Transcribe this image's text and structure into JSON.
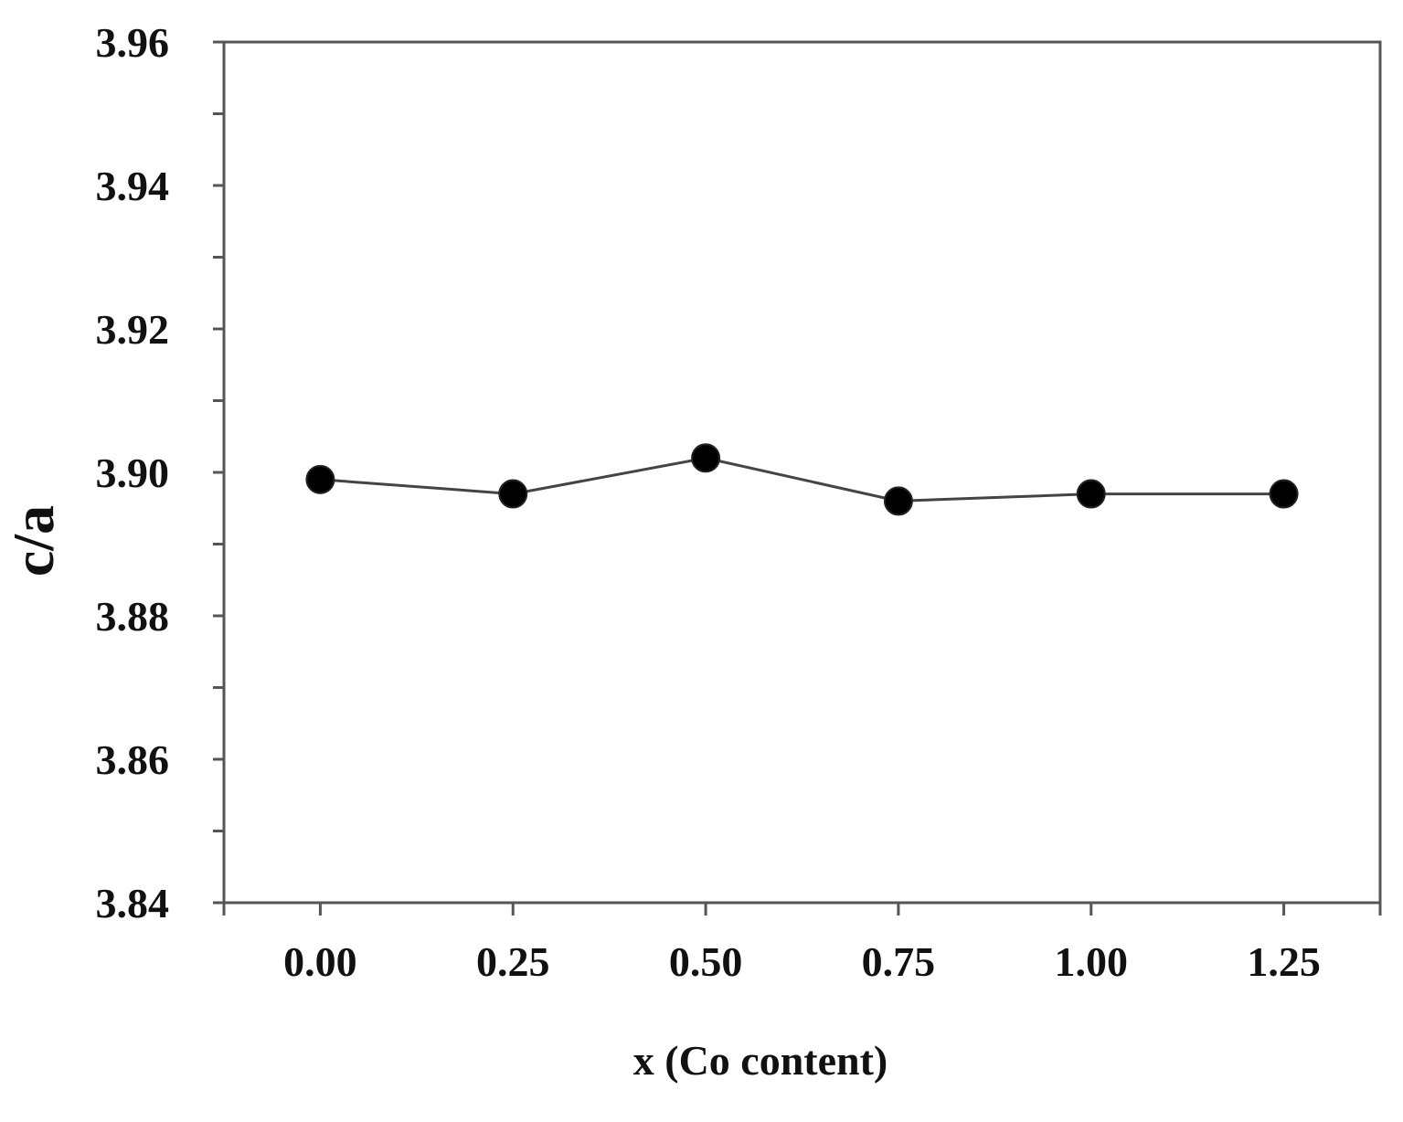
{
  "chart_data": {
    "type": "line",
    "title": "",
    "xlabel": "x (Co content)",
    "ylabel": "c/a",
    "x_ticks": [
      "0.00",
      "0.25",
      "0.50",
      "0.75",
      "1.00",
      "1.25"
    ],
    "y_ticks": [
      "3.84",
      "3.86",
      "3.88",
      "3.90",
      "3.92",
      "3.94",
      "3.96"
    ],
    "xlim": [
      -0.125,
      1.375
    ],
    "ylim": [
      3.84,
      3.96
    ],
    "grid": false,
    "series": [
      {
        "x": [
          0.0,
          0.25,
          0.5,
          0.75,
          1.0,
          1.25
        ],
        "y": [
          3.899,
          3.897,
          3.902,
          3.896,
          3.897,
          3.897
        ],
        "line_color": "#444444",
        "marker": "circle",
        "marker_color": "#000000"
      }
    ]
  }
}
